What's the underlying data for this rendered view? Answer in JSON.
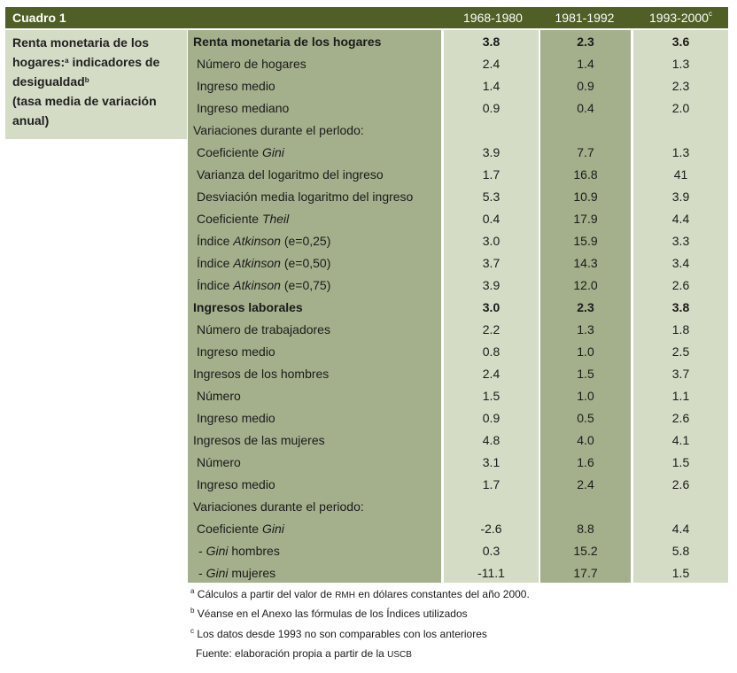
{
  "header": {
    "title": "Cuadro 1",
    "col1": "1968-1980",
    "col2": "1981-1992",
    "col3": "1993-2000",
    "col3_sup": "c"
  },
  "sidebar": {
    "line1": "Renta monetaria de los",
    "line2_main": "hogares:",
    "line2_sup": "a",
    "line2_rest": " indicadores de",
    "line3_main": "desigualdad",
    "line3_sup": "b",
    "line4": "(tasa media de variación",
    "line5": "anual)"
  },
  "rows": [
    {
      "pre": "Renta monetaria de los hogares",
      "it": "",
      "post": "",
      "v1": "3.8",
      "v2": "2.3",
      "v3": "3.6"
    },
    {
      "pre": "Número de hogares",
      "it": "",
      "post": "",
      "v1": "2.4",
      "v2": "1.4",
      "v3": "1.3"
    },
    {
      "pre": "Ingreso medio",
      "it": "",
      "post": "",
      "v1": "1.4",
      "v2": "0.9",
      "v3": "2.3"
    },
    {
      "pre": "Ingreso mediano",
      "it": "",
      "post": "",
      "v1": "0.9",
      "v2": "0.4",
      "v3": "2.0"
    },
    {
      "pre": "Variaciones durante el perlodo:",
      "it": "",
      "post": "",
      "v1": "",
      "v2": "",
      "v3": ""
    },
    {
      "pre": "Coeficiente ",
      "it": "Gini",
      "post": "",
      "v1": "3.9",
      "v2": "7.7",
      "v3": "1.3"
    },
    {
      "pre": "Varianza del logaritmo del ingreso",
      "it": "",
      "post": "",
      "v1": "1.7",
      "v2": "16.8",
      "v3": "41"
    },
    {
      "pre": "Desviación media logaritmo del ingreso",
      "it": "",
      "post": "",
      "v1": "5.3",
      "v2": "10.9",
      "v3": "3.9"
    },
    {
      "pre": "Coeficiente ",
      "it": "Theil",
      "post": "",
      "v1": "0.4",
      "v2": "17.9",
      "v3": "4.4"
    },
    {
      "pre": "Índice ",
      "it": "Atkinson",
      "post": " (e=0,25)",
      "v1": "3.0",
      "v2": "15.9",
      "v3": "3.3"
    },
    {
      "pre": "Índice ",
      "it": "Atkinson",
      "post": " (e=0,50)",
      "v1": "3.7",
      "v2": "14.3",
      "v3": "3.4"
    },
    {
      "pre": "Índice ",
      "it": "Atkinson",
      "post": " (e=0,75)",
      "v1": "3.9",
      "v2": "12.0",
      "v3": "2.6"
    },
    {
      "pre": "Ingresos laborales",
      "it": "",
      "post": "",
      "v1": "3.0",
      "v2": "2.3",
      "v3": "3.8"
    },
    {
      "pre": "Número de trabajadores",
      "it": "",
      "post": "",
      "v1": "2.2",
      "v2": "1.3",
      "v3": "1.8"
    },
    {
      "pre": "Ingreso medio",
      "it": "",
      "post": "",
      "v1": "0.8",
      "v2": "1.0",
      "v3": "2.5"
    },
    {
      "pre": "Ingresos de los hombres",
      "it": "",
      "post": "",
      "v1": "2.4",
      "v2": "1.5",
      "v3": "3.7"
    },
    {
      "pre": "Número",
      "it": "",
      "post": "",
      "v1": "1.5",
      "v2": "1.0",
      "v3": "1.1"
    },
    {
      "pre": "Ingreso medio",
      "it": "",
      "post": "",
      "v1": "0.9",
      "v2": "0.5",
      "v3": "2.6"
    },
    {
      "pre": "Ingresos de las mujeres",
      "it": "",
      "post": "",
      "v1": "4.8",
      "v2": "4.0",
      "v3": "4.1"
    },
    {
      "pre": "Número",
      "it": "",
      "post": "",
      "v1": "3.1",
      "v2": "1.6",
      "v3": "1.5"
    },
    {
      "pre": "Ingreso medio",
      "it": "",
      "post": "",
      "v1": "1.7",
      "v2": "2.4",
      "v3": "2.6"
    },
    {
      "pre": "Variaciones durante el periodo:",
      "it": "",
      "post": "",
      "v1": "",
      "v2": "",
      "v3": ""
    },
    {
      "pre": "Coeficiente ",
      "it": "Gini",
      "post": "",
      "v1": "-2.6",
      "v2": "8.8",
      "v3": "4.4"
    },
    {
      "pre": "- ",
      "it": "Gini",
      "post": " hombres",
      "v1": "0.3",
      "v2": "15.2",
      "v3": "5.8"
    },
    {
      "pre": "- ",
      "it": "Gini",
      "post": " mujeres",
      "v1": "-11.1",
      "v2": "17.7",
      "v3": "1.5"
    }
  ],
  "footnotes": {
    "a_sup": "a",
    "a_pre": " Cálculos a partir del valor de ",
    "a_small": "RMH",
    "a_post": " en dólares constantes del año 2000.",
    "b_sup": "b",
    "b_text": " Véanse en el Anexo las fórmulas de los Índices utilizados",
    "c_sup": "c",
    "c_text": " Los datos desde 1993 no son comparables con los anteriores",
    "source_pre": "Fuente: elaboración propia a partir de la ",
    "source_small": "USCB"
  }
}
